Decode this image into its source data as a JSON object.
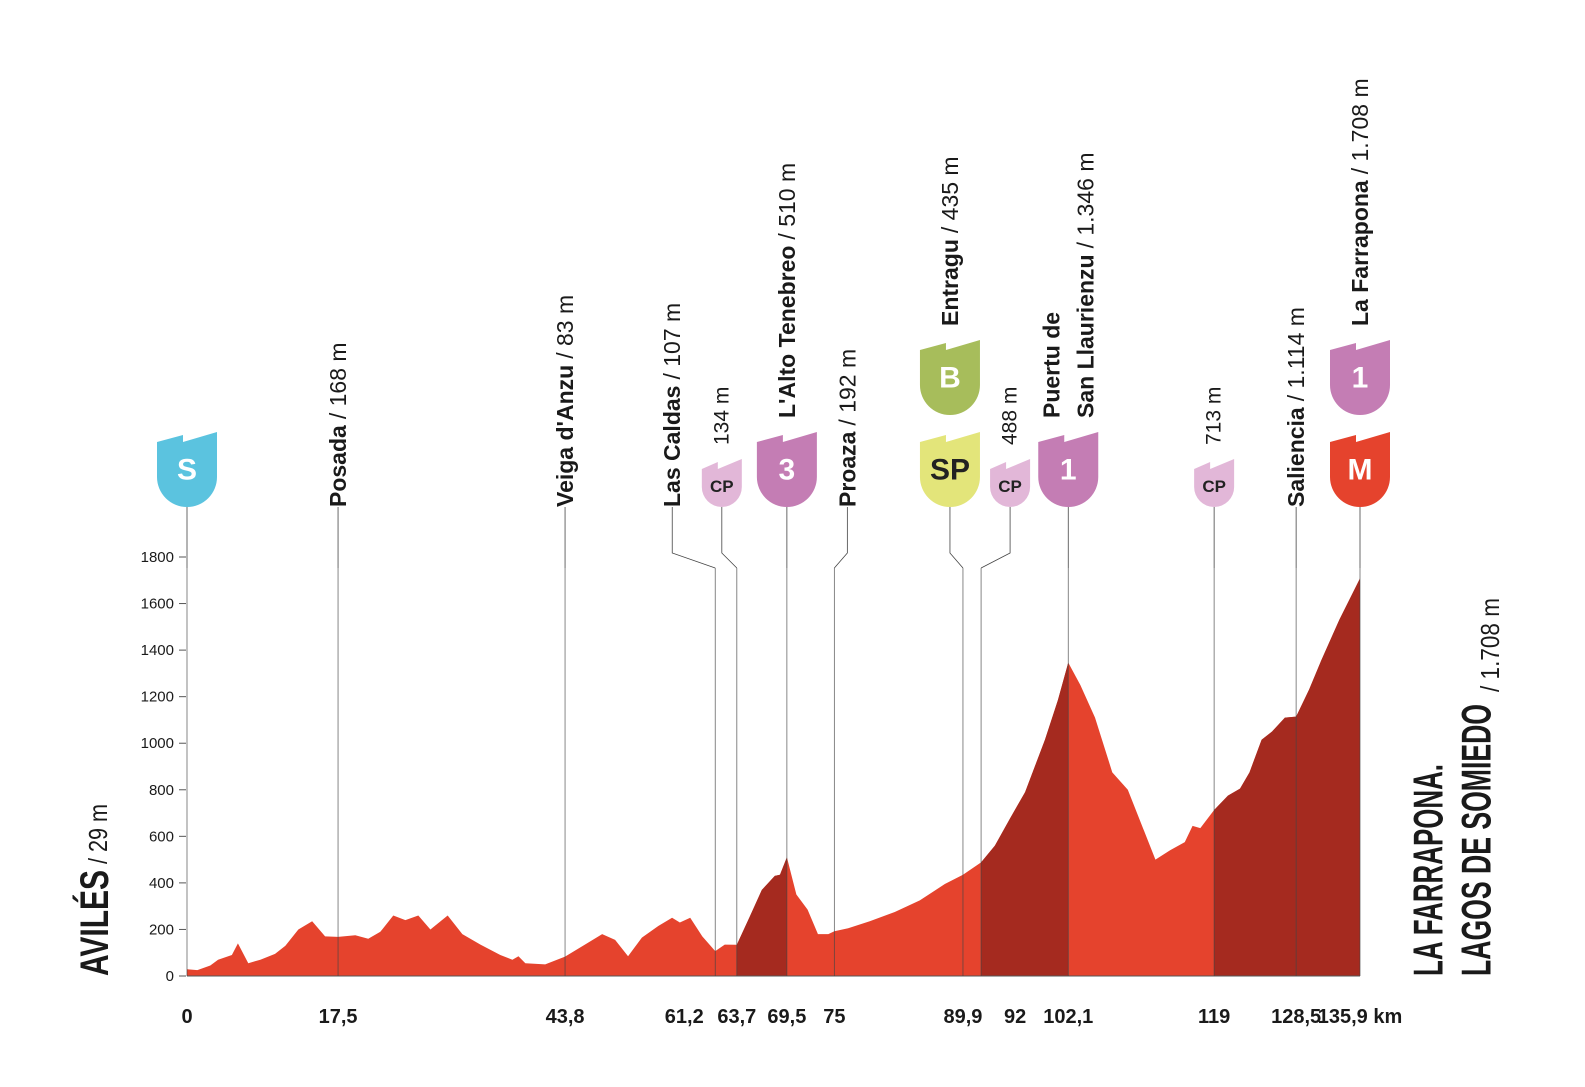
{
  "chart_data": {
    "type": "area",
    "x": [
      0,
      1.2,
      2.7,
      3.6,
      4.4,
      5.2,
      5.9,
      7.1,
      8.5,
      10.2,
      11.4,
      12.9,
      14.5,
      16.0,
      17.5,
      19.5,
      21.0,
      22.4,
      23.9,
      25.3,
      26.8,
      28.2,
      30.2,
      31.9,
      34.0,
      36.3,
      37.7,
      38.4,
      39.2,
      41.5,
      43.8,
      46.1,
      48.1,
      49.6,
      51.1,
      52.7,
      54.6,
      56.2,
      57.1,
      58.3,
      59.7,
      61.2,
      62.3,
      63.7,
      65.2,
      66.6,
      68.1,
      68.7,
      69.5,
      70.6,
      71.9,
      73.1,
      74.3,
      75,
      76.6,
      79.1,
      82.0,
      84.9,
      87.8,
      89.9,
      92,
      93.6,
      95.4,
      97.1,
      99.4,
      100.9,
      102.1,
      103.5,
      105.2,
      107.2,
      109.0,
      112.2,
      113.9,
      115.6,
      116.5,
      117.4,
      119,
      120.6,
      122.0,
      123.1,
      124.5,
      125.7,
      127.2,
      128.5,
      130.0,
      131.4,
      133.5,
      135.9
    ],
    "values": [
      29,
      25,
      45,
      70,
      80,
      90,
      140,
      55,
      70,
      95,
      130,
      200,
      235,
      170,
      168,
      175,
      160,
      190,
      260,
      240,
      260,
      200,
      260,
      180,
      135,
      90,
      70,
      85,
      55,
      50,
      83,
      135,
      180,
      155,
      85,
      165,
      215,
      250,
      230,
      250,
      170,
      107,
      135,
      134,
      255,
      370,
      430,
      435,
      510,
      350,
      285,
      180,
      180,
      192,
      205,
      235,
      275,
      325,
      395,
      435,
      488,
      560,
      680,
      790,
      1015,
      1185,
      1346,
      1250,
      1110,
      875,
      800,
      500,
      540,
      575,
      645,
      635,
      713,
      775,
      805,
      875,
      1015,
      1050,
      1110,
      1114,
      1230,
      1355,
      1530,
      1708
    ],
    "colors": {
      "profile": "#e5432d",
      "climb": "#a52a1f"
    },
    "climbs": [
      {
        "from": 63.7,
        "to": 69.5
      },
      {
        "from": 92,
        "to": 102.1
      },
      {
        "from": 119,
        "to": 135.9
      }
    ],
    "xlim": [
      0,
      135.9
    ],
    "xticks": [
      0,
      {
        "value": 17.5,
        "label": "17,5"
      },
      {
        "value": 43.8,
        "label": "43,8"
      },
      {
        "value": 61.2,
        "label": "61,2"
      },
      {
        "value": 63.7,
        "label": "63,7"
      },
      {
        "value": 69.5,
        "label": "69,5"
      },
      75,
      {
        "value": 89.9,
        "label": "89,9"
      },
      92,
      {
        "value": 102.1,
        "label": "102,1"
      },
      119,
      {
        "value": 128.5,
        "label": "128,5"
      },
      {
        "value": 135.9,
        "label": "135,9 km"
      }
    ],
    "ylim": [
      0,
      1800
    ],
    "yticks": [
      0,
      200,
      400,
      600,
      800,
      1000,
      1200,
      1400,
      1600,
      1800
    ],
    "start": {
      "name": "AVILÉS",
      "elevation": "/ 29 m"
    },
    "finish": {
      "name": [
        "LA FARRAPONA.",
        "LAGOS DE SOMIEDO"
      ],
      "elevation": "/ 1.708 m"
    },
    "waypoints": [
      {
        "badges": [
          {
            "label": "S",
            "color": "#5bc3df"
          }
        ]
      },
      {
        "name": "Posada",
        "elevation": "/ 168 m"
      },
      {
        "name": "Veiga d'Anzu",
        "elevation": "/ 83 m"
      },
      {
        "name": "Las Caldas",
        "elevation": "/ 107 m"
      },
      {
        "elevation": "134 m",
        "badges": [
          {
            "label": "CP",
            "color": "#e2b7d8",
            "size": "small"
          }
        ]
      },
      {
        "name": "L'Alto Tenebreo",
        "elevation": "/ 510 m",
        "badges": [
          {
            "label": "3",
            "color": "#c47db4"
          }
        ]
      },
      {
        "name": "Proaza",
        "elevation": "/ 192 m"
      },
      {
        "name": "Entragu",
        "elevation": "/ 435 m",
        "badges": [
          {
            "label": "B",
            "color": "#a7bd5b"
          },
          {
            "label": "SP",
            "color": "#e3e57a"
          }
        ]
      },
      {
        "elevation": "488 m",
        "badges": [
          {
            "label": "CP",
            "color": "#e2b7d8",
            "size": "small"
          }
        ]
      },
      {
        "name": [
          "Puertu de",
          "San Llaurienzu"
        ],
        "elevation": "/ 1.346 m",
        "badges": [
          {
            "label": "1",
            "color": "#c47db4"
          }
        ]
      },
      {
        "elevation": "713 m",
        "badges": [
          {
            "label": "CP",
            "color": "#e2b7d8",
            "size": "small"
          }
        ]
      },
      {
        "name": "Saliencia",
        "elevation": "/ 1.114 m"
      },
      {
        "name": "La Farrapona",
        "elevation": "/ 1.708 m",
        "badges": [
          {
            "label": "1",
            "color": "#c47db4"
          },
          {
            "label": "M",
            "color": "#e5432d"
          }
        ]
      }
    ]
  }
}
